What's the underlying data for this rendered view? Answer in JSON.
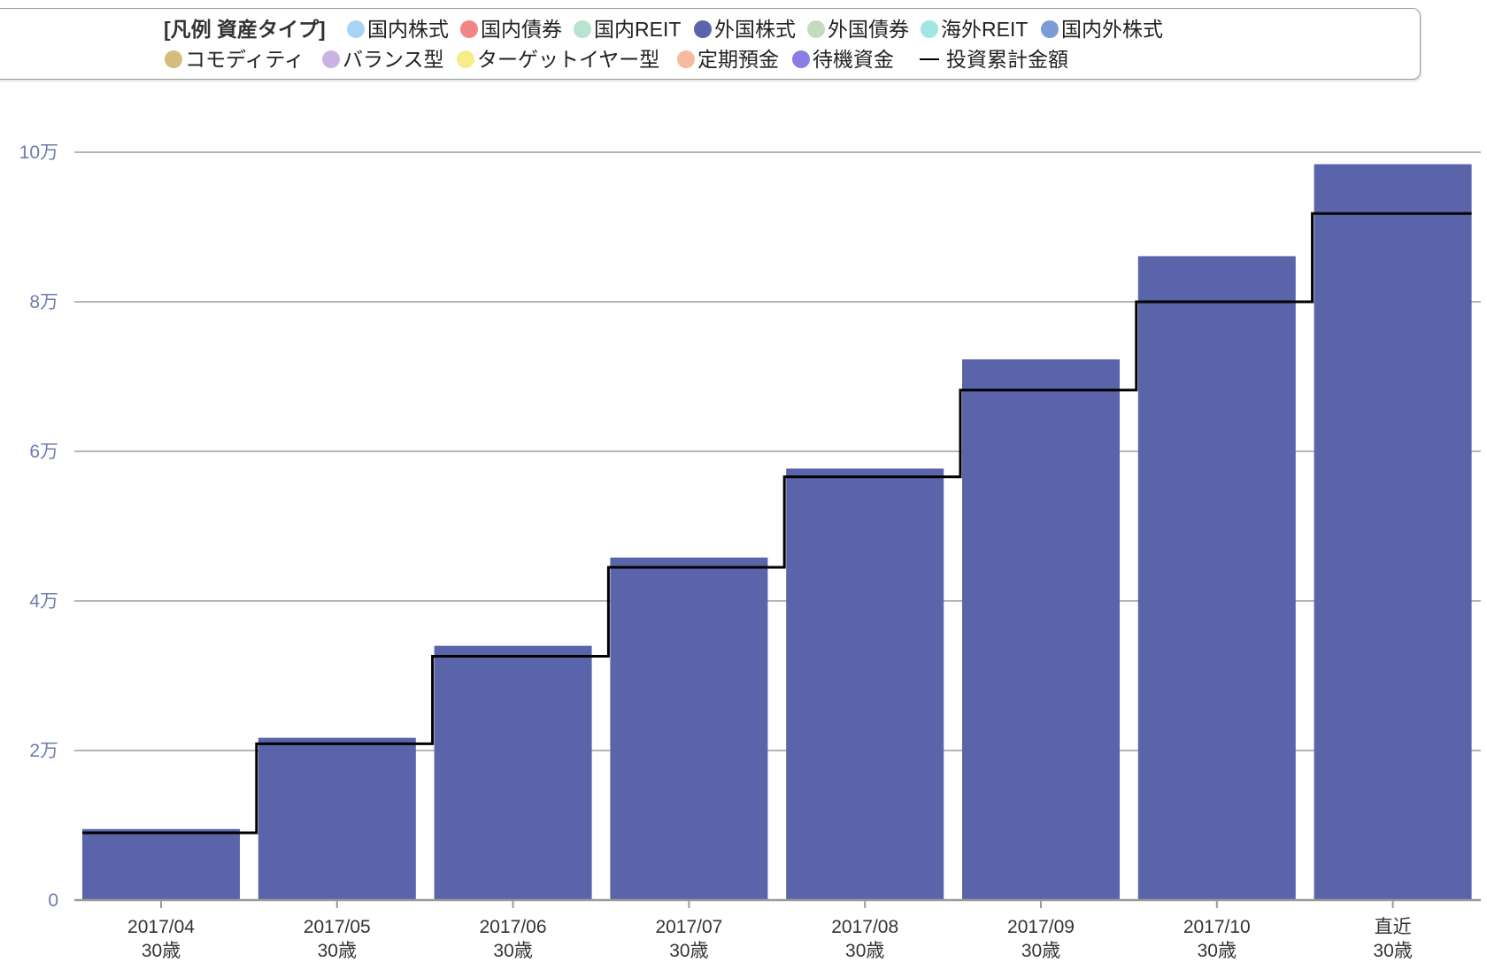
{
  "chart_data": {
    "type": "bar",
    "legend": {
      "title": "[凡例 資産タイプ]",
      "position": "top",
      "items": [
        {
          "label": "国内株式",
          "color": "#a9d4f6"
        },
        {
          "label": "国内債券",
          "color": "#f28585"
        },
        {
          "label": "国内REIT",
          "color": "#b9e2d0"
        },
        {
          "label": "外国株式",
          "color": "#5964ab"
        },
        {
          "label": "外国債券",
          "color": "#c6dbbd"
        },
        {
          "label": "海外REIT",
          "color": "#9fe6e4"
        },
        {
          "label": "国内外株式",
          "color": "#7b9cd8"
        },
        {
          "label": "コモディティ",
          "color": "#d4bd7b"
        },
        {
          "label": "バランス型",
          "color": "#c8b3e4"
        },
        {
          "label": "ターゲットイヤー型",
          "color": "#f7ed88"
        },
        {
          "label": "定期預金",
          "color": "#f7b9a0"
        },
        {
          "label": "待機資金",
          "color": "#8a7de6"
        }
      ],
      "line_item": {
        "label": "投資累計金額",
        "color": "#000000"
      }
    },
    "categories": [
      "2017/04",
      "2017/05",
      "2017/06",
      "2017/07",
      "2017/08",
      "2017/09",
      "2017/10",
      "直近"
    ],
    "category_sublabels": [
      "30歳",
      "30歳",
      "30歳",
      "30歳",
      "30歳",
      "30歳",
      "30歳",
      "30歳"
    ],
    "series": [
      {
        "name": "外国株式",
        "type": "bar",
        "color": "#5964ab",
        "values": [
          9500,
          21700,
          34000,
          45800,
          57700,
          72300,
          86100,
          98400
        ]
      },
      {
        "name": "投資累計金額",
        "type": "step-line",
        "color": "#000000",
        "values": [
          9000,
          20900,
          32600,
          44500,
          56600,
          68200,
          80000,
          91800
        ]
      }
    ],
    "ylim": [
      0,
      100000
    ],
    "yticks": [
      0,
      20000,
      40000,
      60000,
      80000,
      100000
    ],
    "ytick_labels": [
      "0",
      "2万",
      "4万",
      "6万",
      "8万",
      "10万"
    ],
    "grid": true
  }
}
